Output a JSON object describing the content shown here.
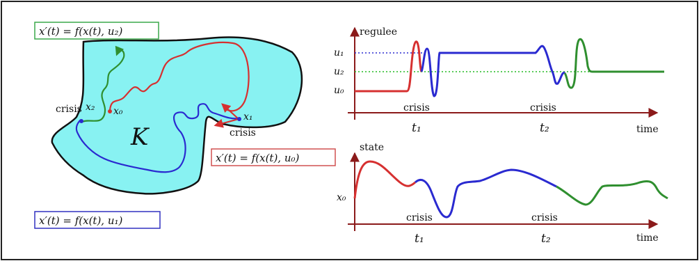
{
  "left_panel": {
    "set_label": "K",
    "eq_green": "x′(t) = f(x(t), u₂)",
    "eq_red": "x′(t) = f(x(t), u₀)",
    "eq_blue": "x′(t) = f(x(t), u₁)",
    "crisis_top": "crisis",
    "crisis_right": "crisis",
    "point_x0": "x₀",
    "point_x1": "x₁",
    "point_x2": "x₂"
  },
  "top_chart": {
    "ylabel": "regulee",
    "xlabel": "time",
    "ticks_y": [
      "u₁",
      "u₂",
      "u₀"
    ],
    "ticks_x": [
      "t₁",
      "t₂"
    ],
    "crisis_1": "crisis",
    "crisis_2": "crisis"
  },
  "bottom_chart": {
    "ylabel": "state",
    "xlabel": "time",
    "tick_y": "x₀",
    "ticks_x": [
      "t₁",
      "t₂"
    ],
    "crisis_1": "crisis",
    "crisis_2": "crisis"
  },
  "colors": {
    "region_fill": "#88f2f2",
    "red": "#d63030",
    "blue": "#2a2ad0",
    "green": "#2f8f2f",
    "axis": "#8b1a1a",
    "box_green": "#3aa84a",
    "box_red": "#d05050",
    "box_blue": "#3030c0"
  }
}
